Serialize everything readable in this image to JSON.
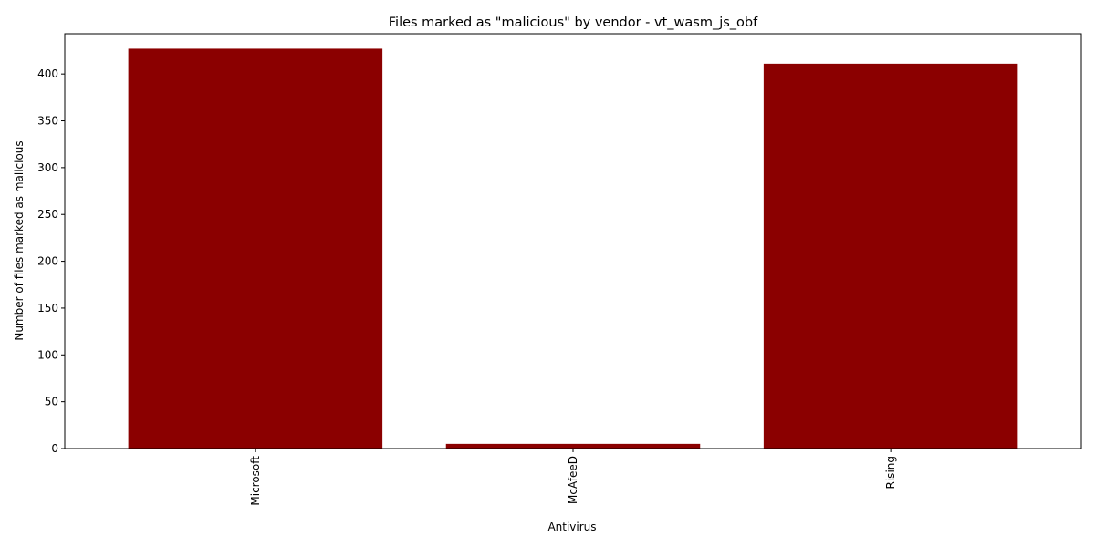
{
  "chart_data": {
    "type": "bar",
    "title": "Files marked as \"malicious\" by vendor - vt_wasm_js_obf",
    "xlabel": "Antivirus",
    "ylabel": "Number of files marked as malicious",
    "categories": [
      "Microsoft",
      "McAfeeD",
      "Rising"
    ],
    "values": [
      427,
      5,
      411
    ],
    "ylim": [
      0,
      443
    ],
    "yticks": [
      0,
      50,
      100,
      150,
      200,
      250,
      300,
      350,
      400
    ],
    "bar_color": "#8b0000",
    "grid": false,
    "legend": false
  }
}
